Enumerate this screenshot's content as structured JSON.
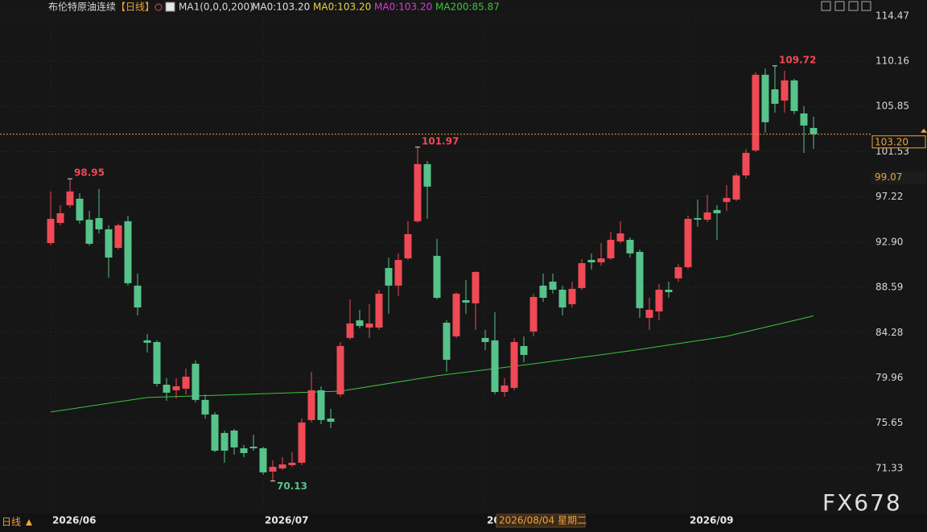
{
  "chart_data": {
    "type": "candlestick",
    "title": "布伦特原油连续",
    "period": "【日线】",
    "indicator_name": "MA1(0,0,0,200)",
    "indicator_values": [
      {
        "label": "MA0:103.20",
        "color": "#e0e0e0"
      },
      {
        "label": "MA0:103.20",
        "color": "#e6d24a"
      },
      {
        "label": "MA0:103.20",
        "color": "#d63cd6"
      }
    ],
    "categories": [
      "2026/06",
      null,
      null,
      null,
      null,
      null,
      null,
      null,
      null,
      null,
      null,
      null,
      null,
      null,
      null,
      null,
      null,
      null,
      null,
      null,
      null,
      null,
      "2026/07",
      null,
      null,
      null,
      null,
      null,
      null,
      null,
      null,
      null,
      null,
      null,
      null,
      null,
      null,
      null,
      null,
      null,
      null,
      null,
      null,
      null,
      null,
      "2026/08",
      null,
      null,
      null,
      null,
      null,
      null,
      null,
      null,
      null,
      null,
      null,
      null,
      null,
      null,
      null,
      null,
      null,
      null,
      null,
      null,
      "2026/09",
      null,
      null,
      null,
      null,
      null,
      null,
      null,
      null,
      null,
      null,
      null,
      null,
      null
    ],
    "open": [
      92.82,
      94.74,
      96.43,
      97.05,
      95.05,
      95.2,
      94.13,
      92.36,
      94.9,
      88.76,
      83.54,
      83.38,
      79.31,
      78.78,
      78.93,
      81.31,
      77.86,
      76.47,
      74.71,
      74.94,
      73.25,
      73.4,
      73.25,
      71.02,
      71.33,
      71.64,
      71.87,
      75.94,
      78.78,
      76.09,
      78.39,
      83.77,
      85.45,
      84.76,
      84.76,
      90.44,
      88.76,
      91.36,
      94.9,
      100.35,
      91.6,
      85.22,
      83.92,
      87.37,
      87.07,
      83.77,
      83.54,
      78.62,
      79.01,
      83.0,
      84.38,
      88.76,
      89.14,
      88.37,
      86.99,
      88.53,
      91.21,
      90.98,
      91.36,
      92.98,
      93.13,
      91.98,
      85.69,
      86.3,
      88.37,
      89.45,
      90.52,
      95.2,
      95.05,
      95.97,
      96.74,
      96.97,
      99.27,
      101.65,
      108.87,
      107.48,
      106.41,
      108.33,
      105.18,
      103.8
    ],
    "high": [
      97.74,
      96.43,
      98.95,
      97.58,
      95.89,
      97.97,
      94.51,
      94.67,
      95.43,
      89.91,
      84.15,
      83.54,
      79.93,
      79.93,
      80.85,
      81.62,
      78.39,
      76.7,
      74.94,
      75.09,
      73.56,
      74.55,
      73.4,
      72.1,
      72.4,
      72.87,
      76.09,
      80.54,
      79.16,
      77.01,
      83.38,
      87.45,
      86.45,
      86.99,
      88.37,
      91.44,
      91.83,
      94.9,
      101.97,
      100.65,
      93.21,
      85.45,
      88.14,
      89.29,
      90.14,
      84.53,
      86.22,
      79.93,
      83.77,
      83.92,
      87.99,
      89.91,
      89.91,
      88.76,
      89.14,
      91.29,
      91.83,
      92.82,
      93.9,
      94.9,
      93.36,
      92.21,
      87.6,
      88.91,
      89.14,
      90.83,
      95.43,
      96.97,
      97.43,
      96.43,
      98.35,
      99.5,
      101.8,
      109.1,
      109.48,
      109.72,
      109.25,
      108.48,
      105.87,
      104.87
    ],
    "low": [
      92.59,
      94.51,
      96.2,
      94.67,
      92.59,
      93.74,
      89.52,
      92.21,
      88.76,
      85.92,
      82.38,
      79.16,
      77.78,
      78.01,
      78.39,
      77.63,
      76.09,
      72.87,
      71.87,
      72.64,
      72.4,
      73.02,
      70.72,
      70.13,
      71.18,
      71.48,
      71.64,
      75.71,
      75.55,
      75.17,
      78.16,
      83.61,
      84.69,
      83.77,
      84.53,
      86.07,
      87.76,
      91.21,
      94.74,
      95.13,
      87.45,
      80.54,
      83.77,
      86.07,
      84.53,
      82.61,
      78.39,
      78.16,
      78.78,
      81.46,
      83.92,
      87.22,
      87.99,
      85.92,
      86.68,
      88.37,
      90.29,
      90.67,
      91.21,
      92.82,
      91.44,
      85.69,
      84.53,
      85.45,
      87.6,
      89.14,
      90.37,
      94.36,
      94.82,
      93.13,
      95.89,
      96.82,
      98.96,
      101.5,
      103.34,
      105.26,
      105.26,
      105.11,
      101.42,
      101.8
    ],
    "close": [
      95.13,
      95.66,
      97.74,
      94.97,
      92.75,
      94.13,
      91.44,
      94.51,
      88.99,
      86.68,
      83.31,
      79.39,
      78.55,
      79.16,
      80.08,
      77.86,
      76.47,
      73.02,
      73.02,
      73.33,
      72.79,
      73.25,
      70.95,
      71.48,
      71.71,
      71.87,
      75.71,
      78.78,
      75.94,
      75.78,
      83.0,
      85.15,
      84.92,
      85.15,
      87.99,
      88.76,
      91.21,
      93.67,
      100.35,
      98.2,
      87.6,
      81.69,
      87.99,
      87.14,
      90.06,
      83.38,
      78.62,
      79.24,
      83.38,
      82.15,
      87.68,
      87.6,
      88.37,
      86.68,
      88.45,
      90.9,
      90.98,
      91.36,
      93.13,
      93.74,
      91.83,
      86.61,
      86.45,
      88.37,
      88.14,
      90.52,
      95.13,
      95.05,
      95.74,
      95.66,
      97.12,
      99.27,
      101.42,
      108.87,
      104.34,
      106.1,
      108.33,
      105.41,
      104.03,
      103.2
    ],
    "close_label": "103.20",
    "up_color": "#ef4a55",
    "down_color": "#56c38b",
    "ma200": {
      "label": "MA200:85.87",
      "color": "#3ec43e",
      "x": [
        0,
        10,
        20,
        30,
        40,
        50,
        60,
        70,
        79
      ],
      "values": [
        76.71,
        78.09,
        78.39,
        78.7,
        80.16,
        81.31,
        82.54,
        83.92,
        85.87
      ]
    },
    "ylim": [
      67.26,
      116.0
    ],
    "yticks": [
      71.33,
      75.65,
      79.96,
      84.28,
      88.59,
      {
        "value": 92.9,
        "label": "92.90"
      },
      97.22,
      101.53,
      105.85,
      110.16,
      114.47
    ],
    "grid": true,
    "last_price_color": "#f0a33a",
    "crosshair": {
      "price": 99.07,
      "date": "2026/08/04 星期二"
    },
    "watermark": "FX678",
    "footer": "日线"
  }
}
